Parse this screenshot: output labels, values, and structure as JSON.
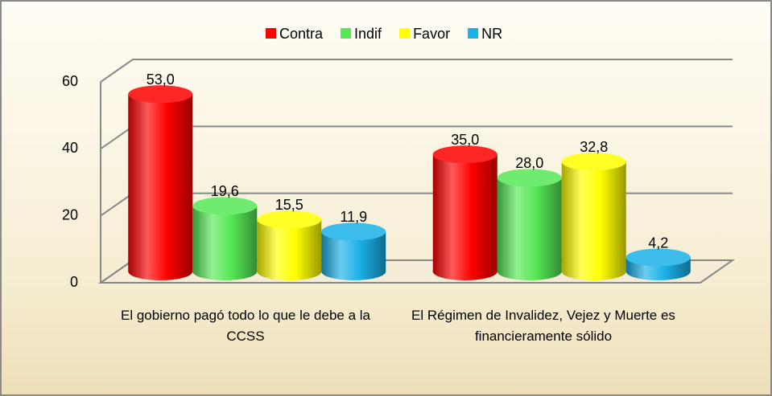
{
  "chart_data": {
    "type": "bar",
    "categories": [
      "El gobierno pagó todo lo que le debe a la CCSS",
      "El Régimen de Invalidez, Vejez y Muerte es financieramente sólido"
    ],
    "series": [
      {
        "name": "Contra",
        "color": "#ff0000",
        "values": [
          53.0,
          35.0
        ],
        "value_labels": [
          "53,0",
          "35,0"
        ]
      },
      {
        "name": "Indif",
        "color": "#55e855",
        "values": [
          19.6,
          28.0
        ],
        "value_labels": [
          "19,6",
          "28,0"
        ]
      },
      {
        "name": "Favor",
        "color": "#ffff00",
        "values": [
          15.5,
          32.8
        ],
        "value_labels": [
          "15,5",
          "32,8"
        ]
      },
      {
        "name": "NR",
        "color": "#1ab0e8",
        "values": [
          11.9,
          4.2
        ],
        "value_labels": [
          "11,9",
          "4,2"
        ]
      }
    ],
    "ylim": [
      0,
      60
    ],
    "yticks": [
      0,
      20,
      40,
      60
    ],
    "grid": true,
    "legend": "top"
  }
}
